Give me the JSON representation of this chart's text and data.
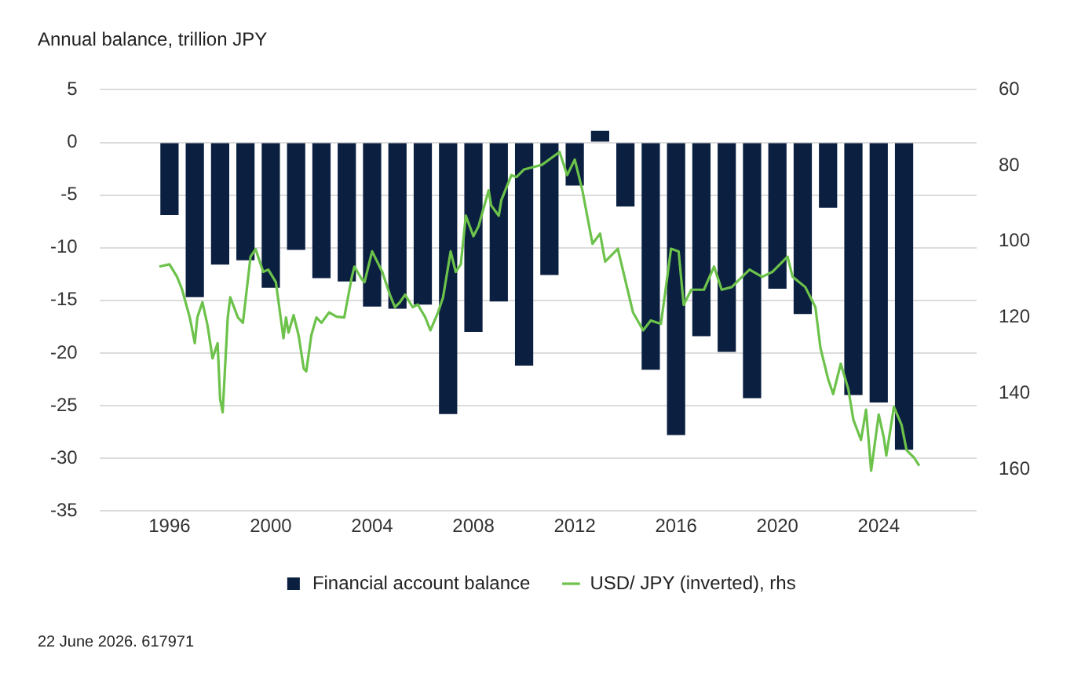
{
  "chart_data": {
    "type": "bar",
    "ylabel": "Annual balance, trillion JPY",
    "x": [
      1996,
      1997,
      1998,
      1999,
      2000,
      2001,
      2002,
      2003,
      2004,
      2005,
      2006,
      2007,
      2008,
      2009,
      2010,
      2011,
      2012,
      2013,
      2014,
      2015,
      2016,
      2017,
      2018,
      2019,
      2020,
      2021,
      2022,
      2023,
      2024,
      2025
    ],
    "series": [
      {
        "name": "Financial account balance",
        "color": "#0b1f40",
        "values": [
          -6.9,
          -14.7,
          -11.6,
          -11.2,
          -13.8,
          -10.2,
          -12.9,
          -13.2,
          -15.6,
          -15.8,
          -15.4,
          -25.8,
          -18.0,
          -15.1,
          -21.2,
          -12.6,
          -4.1,
          1.1,
          -6.1,
          -21.6,
          -27.8,
          -18.4,
          -19.9,
          -24.3,
          -13.9,
          -16.3,
          -6.2,
          -24.0,
          -24.7,
          -29.2
        ]
      },
      {
        "name": "USD/ JPY (inverted), rhs",
        "type": "line",
        "axis": "y2",
        "color": "#6cc24a",
        "x": [
          1995.6,
          1996.0,
          1996.3,
          1996.5,
          1996.8,
          1997.0,
          1997.1,
          1997.3,
          1997.5,
          1997.7,
          1997.9,
          1998.0,
          1998.1,
          1998.3,
          1998.4,
          1998.7,
          1998.9,
          1999.2,
          1999.4,
          1999.7,
          1999.9,
          2000.2,
          2000.5,
          2000.6,
          2000.7,
          2000.9,
          2001.1,
          2001.3,
          2001.4,
          2001.6,
          2001.8,
          2002.0,
          2002.3,
          2002.6,
          2002.9,
          2003.2,
          2003.3,
          2003.6,
          2003.7,
          2004.0,
          2004.4,
          2004.7,
          2004.9,
          2005.1,
          2005.3,
          2005.6,
          2005.8,
          2006.1,
          2006.3,
          2006.6,
          2006.8,
          2007.1,
          2007.3,
          2007.5,
          2007.7,
          2008.0,
          2008.2,
          2008.6,
          2008.7,
          2009.0,
          2009.1,
          2009.5,
          2009.7,
          2010.0,
          2010.7,
          2011.4,
          2011.7,
          2012.0,
          2012.3,
          2012.7,
          2013.0,
          2013.2,
          2013.7,
          2014.3,
          2014.7,
          2015.0,
          2015.4,
          2015.6,
          2015.8,
          2016.1,
          2016.3,
          2016.6,
          2017.1,
          2017.5,
          2017.8,
          2018.2,
          2018.5,
          2018.9,
          2019.4,
          2019.8,
          2020.4,
          2020.6,
          2021.1,
          2021.5,
          2021.7,
          2022.0,
          2022.2,
          2022.5,
          2022.8,
          2023.0,
          2023.3,
          2023.5,
          2023.7,
          2024.0,
          2024.2,
          2024.3,
          2024.6,
          2024.9,
          2025.1,
          2025.4,
          2025.6
        ],
        "values": [
          106.6,
          106,
          109.3,
          112.7,
          120,
          126.8,
          120,
          116,
          122,
          130.8,
          126.8,
          141.6,
          145,
          120,
          114.7,
          120,
          121.4,
          104,
          102,
          108,
          107.4,
          110.7,
          125.5,
          120,
          124,
          119.4,
          124.8,
          133.5,
          134.2,
          124.7,
          120,
          121.4,
          118.7,
          119.8,
          120,
          109.3,
          106.6,
          110,
          110.7,
          102.6,
          108,
          114,
          117.3,
          116,
          114,
          117.3,
          116.6,
          120,
          123.4,
          118.7,
          114.7,
          102.6,
          108,
          106,
          93.2,
          98.6,
          96,
          86.5,
          90.5,
          93.2,
          89.1,
          82.5,
          83,
          81,
          79.8,
          76.4,
          82.5,
          78.4,
          86.5,
          100.6,
          97.9,
          105.3,
          101.9,
          118.7,
          123.4,
          120.8,
          121.7,
          112,
          101.9,
          102.6,
          116.7,
          112.7,
          112.7,
          106.6,
          112.7,
          112,
          110,
          107.4,
          109.3,
          108,
          104,
          109.3,
          112,
          117.3,
          128.1,
          136.2,
          140.2,
          132.2,
          138.9,
          147,
          152.3,
          144.3,
          160.4,
          145.6,
          151.7,
          156.4,
          143.6,
          148.3,
          155,
          157,
          159.1
        ]
      }
    ],
    "xlim": [
      1995.4,
      2025.7
    ],
    "xticks": [
      1996,
      2000,
      2004,
      2008,
      2012,
      2016,
      2020,
      2024
    ],
    "ylim": [
      -35,
      5
    ],
    "yticks": [
      5,
      0,
      -5,
      -10,
      -15,
      -20,
      -25,
      -30,
      -35
    ],
    "y2lim": [
      171,
      60
    ],
    "y2ticks": [
      60,
      80,
      100,
      120,
      140,
      160
    ],
    "grid": "y",
    "legend": "bottom",
    "marker": "none",
    "line_style": "solid",
    "annotations": [
      "22 June 2026. 617971"
    ]
  }
}
